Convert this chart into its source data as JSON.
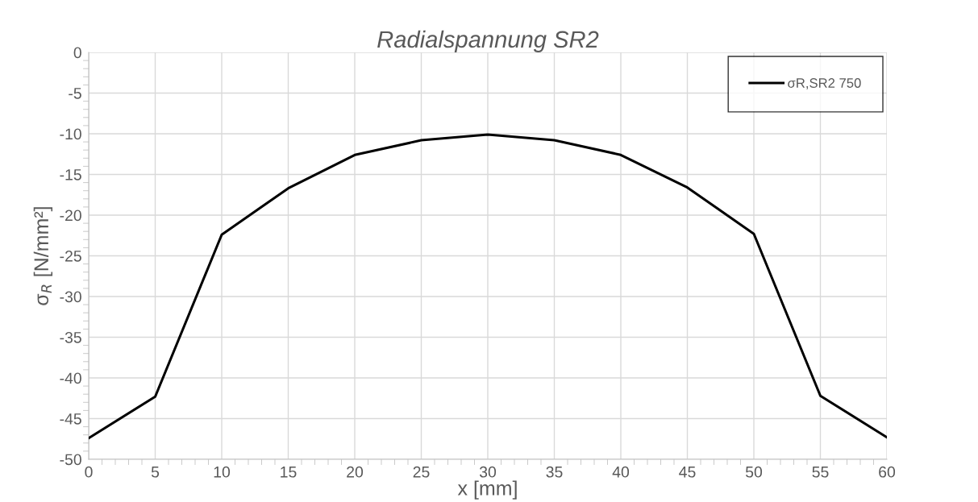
{
  "chart_data": {
    "type": "line",
    "title": "Radialspannung SR2",
    "xlabel": "x [mm]",
    "ylabel": "σ$_{R}$ [N/mm²]",
    "x": [
      0,
      5,
      10,
      15,
      20,
      25,
      30,
      35,
      40,
      45,
      50,
      55,
      60
    ],
    "series": [
      {
        "name": "σR,SR2 750",
        "color": "#000000",
        "values": [
          -47.4,
          -42.3,
          -22.4,
          -16.7,
          -12.6,
          -10.8,
          -10.1,
          -10.8,
          -12.6,
          -16.6,
          -22.3,
          -42.2,
          -47.3
        ]
      }
    ],
    "xlim": [
      0,
      60
    ],
    "xticks": [
      0,
      5,
      10,
      15,
      20,
      25,
      30,
      35,
      40,
      45,
      50,
      55,
      60
    ],
    "ylim": [
      -50,
      0
    ],
    "yticks": [
      -50,
      -45,
      -40,
      -35,
      -30,
      -25,
      -20,
      -15,
      -10,
      -5,
      0
    ],
    "grid": true,
    "legend": "top right",
    "marker": "none",
    "line_style": "solid"
  }
}
